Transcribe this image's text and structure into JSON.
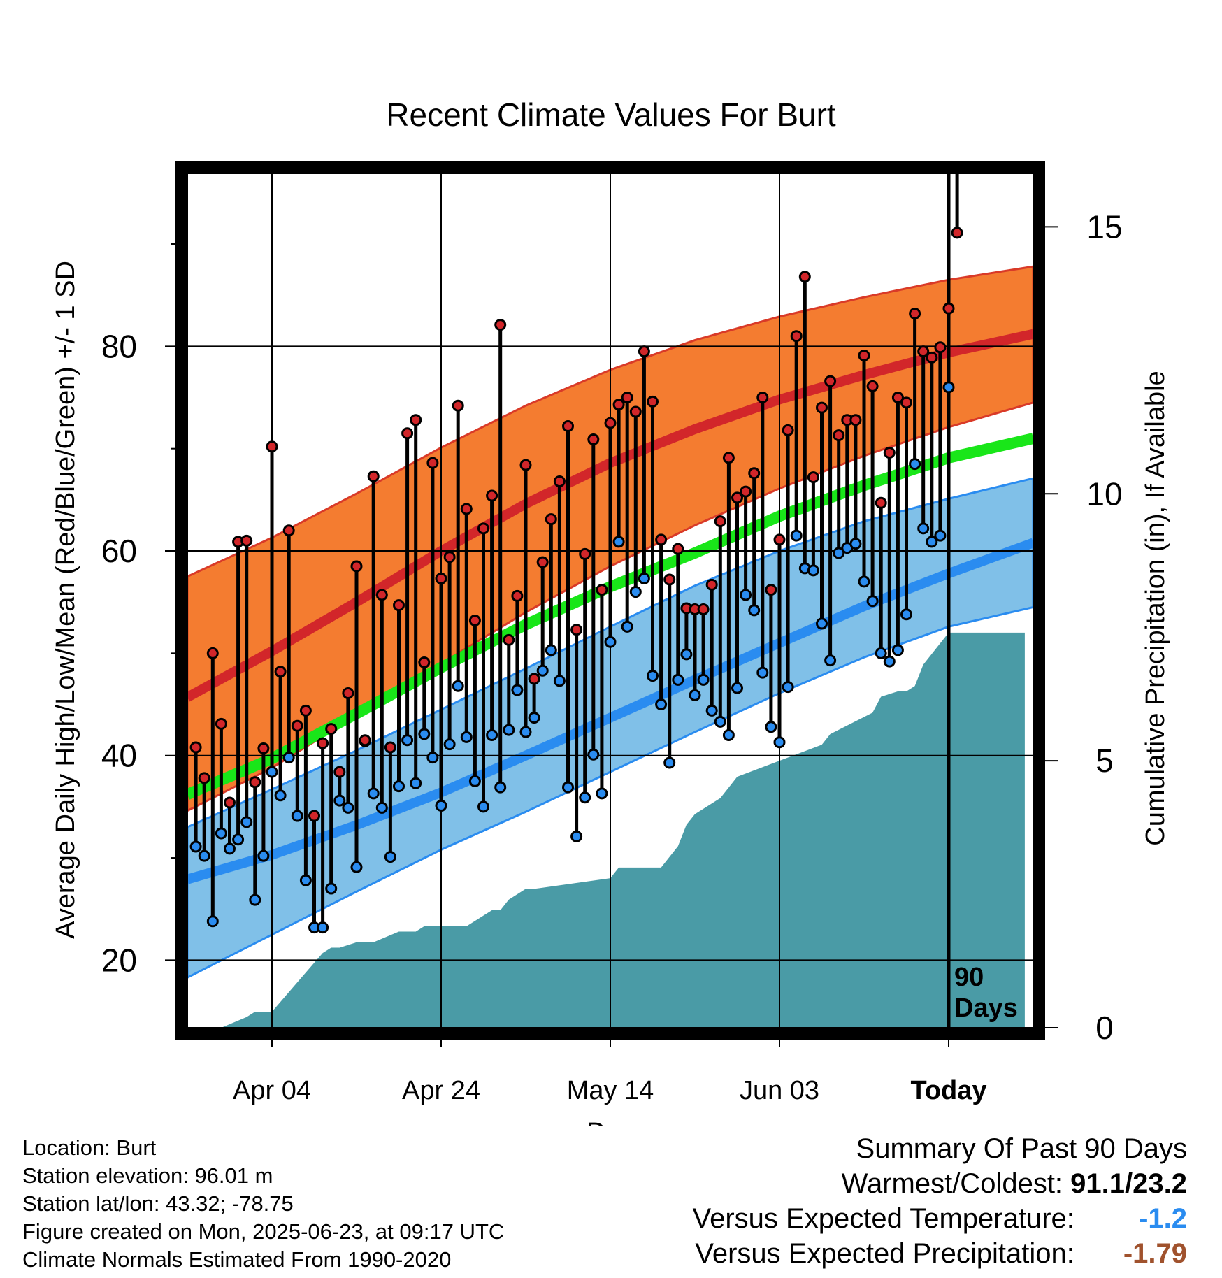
{
  "chart_data": {
    "type": "line",
    "title": "Recent Climate Values For Burt",
    "xlabel": "Day",
    "ylabel_left": "Average Daily High/Low/Mean (Red/Blue/Green) +/- 1 SD",
    "ylabel_right": "Cumulative Precipitation (in), If Available",
    "x_tick_labels": [
      "Apr 04",
      "Apr 24",
      "May 14",
      "Jun 03",
      "Today"
    ],
    "x_tick_days": [
      10,
      30,
      50,
      70,
      90
    ],
    "x_range_days": [
      0,
      100
    ],
    "y_left_ticks": [
      20,
      40,
      60,
      80
    ],
    "y_left_range": [
      13.4,
      96.9
    ],
    "y_right_ticks": [
      0,
      5,
      10,
      15
    ],
    "y_right_range": [
      0,
      16
    ],
    "today_marker_label": "90 Days",
    "grid": true,
    "colors": {
      "high_band": "#f47c30",
      "high_band_edge": "#d93a28",
      "normal_high": "#d2262a",
      "low_band": "#80c0e8",
      "low_band_edge": "#2a8cf0",
      "normal_low": "#2a8cf0",
      "normal_mean": "#19e619",
      "precip_fill": "#4a9ba6",
      "high_marker": "#d2262a",
      "low_marker": "#2a8cf0"
    },
    "normal_high_days": [
      0,
      10,
      20,
      30,
      40,
      50,
      60,
      70,
      80,
      90,
      100
    ],
    "normal_high": [
      45.7,
      50.2,
      55.0,
      60.0,
      64.6,
      68.6,
      71.9,
      74.8,
      77.2,
      79.4,
      81.2
    ],
    "normal_high_sd_upper": [
      57.5,
      61.3,
      65.6,
      70.1,
      74.2,
      77.7,
      80.6,
      82.9,
      84.8,
      86.5,
      87.8
    ],
    "normal_high_sd_lower": [
      34.6,
      38.8,
      43.9,
      49.0,
      54.0,
      58.5,
      62.5,
      66.1,
      69.3,
      72.1,
      74.5
    ],
    "normal_low": [
      27.9,
      30.3,
      33.2,
      36.4,
      40.0,
      43.7,
      47.4,
      51.0,
      54.6,
      57.8,
      60.8
    ],
    "normal_low_sd_upper": [
      33.0,
      36.7,
      40.5,
      44.5,
      48.5,
      52.6,
      56.6,
      60.0,
      62.9,
      65.1,
      67.1
    ],
    "normal_low_sd_lower": [
      18.3,
      22.5,
      26.7,
      30.8,
      34.5,
      38.4,
      42.3,
      46.1,
      49.6,
      52.6,
      54.5
    ],
    "normal_mean": [
      36.2,
      39.7,
      44.1,
      48.6,
      52.8,
      56.5,
      59.8,
      63.4,
      66.4,
      69.1,
      71.0
    ],
    "daily_high": [
      40.8,
      37.8,
      50.0,
      43.1,
      35.4,
      60.9,
      61.0,
      37.4,
      40.7,
      70.2,
      48.2,
      62.0,
      42.9,
      44.4,
      34.1,
      41.2,
      42.6,
      38.4,
      46.1,
      58.5,
      41.5,
      67.3,
      55.7,
      40.8,
      54.7,
      71.5,
      72.8,
      49.1,
      68.6,
      57.3,
      59.4,
      74.2,
      64.1,
      53.2,
      62.2,
      65.4,
      82.1,
      51.3,
      55.6,
      68.4,
      47.5,
      58.9,
      63.1,
      66.8,
      72.2,
      52.3,
      59.7,
      70.9,
      56.2,
      72.5,
      74.3,
      75.0,
      73.6,
      79.5,
      74.6,
      61.1,
      57.2,
      60.2,
      54.4,
      54.3,
      54.3,
      56.7,
      62.9,
      69.1,
      65.2,
      65.8,
      67.6,
      75.0,
      56.2,
      61.1,
      71.8,
      81.0,
      86.8,
      67.2,
      74.0,
      76.6,
      71.3,
      72.8,
      72.8,
      79.1,
      76.1,
      64.7,
      69.6,
      75.0,
      74.5,
      83.2,
      79.5,
      78.9,
      79.9,
      83.7,
      91.1
    ],
    "daily_low": [
      31.1,
      30.2,
      23.8,
      32.4,
      30.9,
      31.8,
      33.5,
      25.9,
      30.2,
      38.4,
      36.1,
      39.8,
      34.1,
      27.8,
      23.2,
      23.2,
      27.0,
      35.6,
      34.9,
      29.1,
      41.4,
      36.3,
      34.9,
      30.1,
      37.0,
      41.5,
      37.3,
      42.1,
      39.8,
      35.1,
      41.1,
      46.8,
      41.8,
      37.5,
      35.0,
      42.0,
      36.9,
      42.5,
      46.4,
      42.3,
      43.7,
      48.3,
      50.3,
      47.3,
      36.9,
      32.1,
      35.9,
      40.1,
      36.3,
      51.1,
      60.9,
      52.6,
      56.0,
      57.3,
      47.8,
      45.0,
      39.3,
      47.4,
      49.9,
      45.9,
      47.4,
      44.4,
      43.3,
      42.0,
      46.6,
      55.7,
      54.2,
      48.1,
      42.8,
      41.3,
      46.7,
      61.5,
      58.3,
      58.1,
      52.9,
      49.3,
      59.8,
      60.3,
      60.7,
      57.0,
      55.1,
      50.0,
      49.2,
      50.3,
      53.8,
      68.5,
      62.2,
      60.9,
      61.5,
      76.0
    ],
    "precip_days": [
      0,
      3,
      4,
      7,
      8,
      9,
      10,
      16,
      17,
      18,
      20,
      22,
      25,
      26,
      27,
      28,
      33,
      34,
      36,
      37,
      38,
      40,
      41,
      50,
      51,
      52,
      53,
      56,
      57,
      58,
      59,
      60,
      63,
      64,
      65,
      70,
      75,
      76,
      81,
      82,
      84,
      85,
      86,
      87,
      88,
      89,
      90,
      99
    ],
    "precip_cumulative": [
      0.0,
      0.0,
      0.0,
      0.2,
      0.3,
      0.3,
      0.3,
      1.4,
      1.5,
      1.5,
      1.6,
      1.6,
      1.8,
      1.8,
      1.8,
      1.9,
      1.9,
      2.0,
      2.2,
      2.2,
      2.4,
      2.6,
      2.6,
      2.8,
      3.0,
      3.0,
      3.0,
      3.0,
      3.2,
      3.4,
      3.8,
      4.0,
      4.3,
      4.5,
      4.7,
      5.0,
      5.3,
      5.5,
      5.9,
      6.2,
      6.3,
      6.3,
      6.4,
      6.8,
      7.0,
      7.2,
      7.4,
      7.4
    ]
  },
  "info": {
    "location": "Location: Burt",
    "elevation": "Station elevation: 96.01 m",
    "latlon": "Station lat/lon: 43.32; -78.75",
    "created": "Figure created on Mon, 2025-06-23, at 09:17 UTC",
    "normals": "Climate Normals Estimated From 1990-2020"
  },
  "summary": {
    "heading": "Summary Of Past 90 Days",
    "warmest_coldest_label": "Warmest/Coldest:",
    "warmest_coldest_value": "91.1/23.2",
    "temp_label": "Versus Expected Temperature:",
    "temp_value": "-1.2",
    "temp_value_color": "#2a8cf0",
    "precip_label": "Versus Expected Precipitation:",
    "precip_value": "-1.79",
    "precip_value_color": "#a0522d"
  }
}
